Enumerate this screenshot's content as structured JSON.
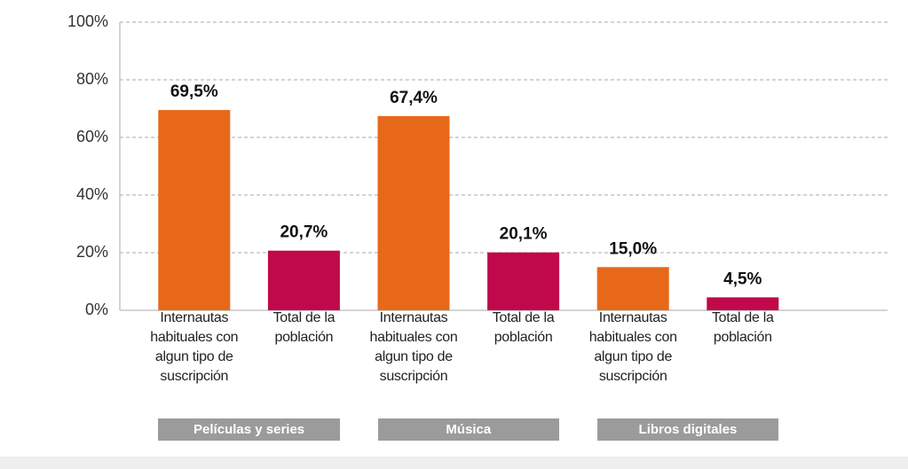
{
  "chart_data": {
    "type": "bar",
    "categories": [
      "Internautas habituales con algun tipo de suscripción",
      "Total de la población",
      "Internautas habituales con algun tipo de suscripción",
      "Total de la población",
      "Internautas habituales con algun tipo de suscripción",
      "Total de la población"
    ],
    "values": [
      69.5,
      20.7,
      67.4,
      20.1,
      15.0,
      4.5
    ],
    "value_labels": [
      "69,5%",
      "20,7%",
      "67,4%",
      "20,1%",
      "15,0%",
      "4,5%"
    ],
    "colors": [
      "#e8681a",
      "#c0094a",
      "#e8681a",
      "#c0094a",
      "#e8681a",
      "#c0094a"
    ],
    "groups": [
      "Películas y series",
      "Música",
      "Libros digitales"
    ],
    "ylim": [
      0,
      100
    ],
    "yticks": [
      {
        "value": 0,
        "label": "0%"
      },
      {
        "value": 20,
        "label": "20%"
      },
      {
        "value": 40,
        "label": "40%"
      },
      {
        "value": 60,
        "label": "60%"
      },
      {
        "value": 80,
        "label": "80%"
      },
      {
        "value": 100,
        "label": "100%"
      }
    ],
    "grid": true
  }
}
